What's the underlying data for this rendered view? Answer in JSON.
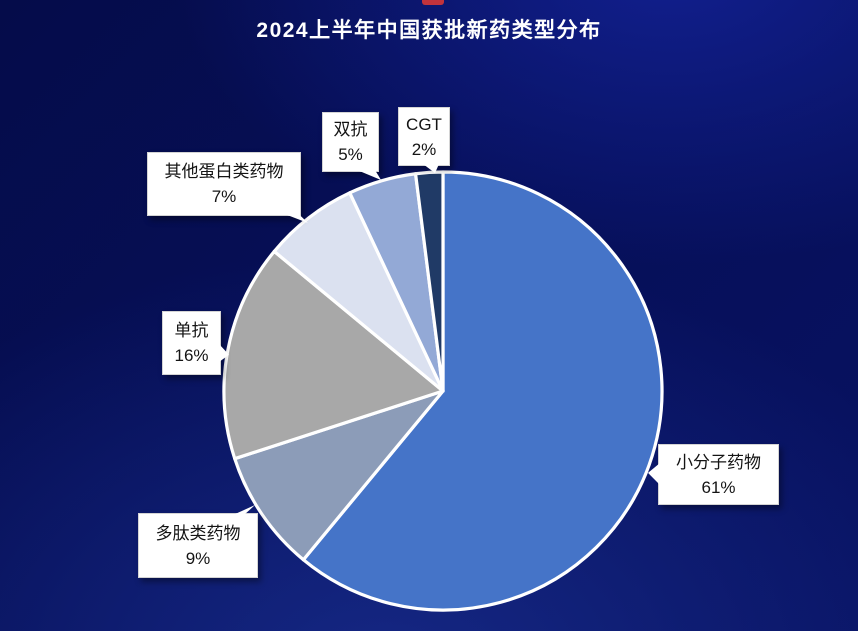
{
  "chart_data": {
    "type": "pie",
    "title": "2024上半年中国获批新药类型分布",
    "direction": "clockwise",
    "start_angle_deg": 0,
    "total_pct": 100,
    "legend": "none",
    "label_style": "white callout boxes with name and percent",
    "slices": [
      {
        "label": "小分子药物",
        "value_pct": 61,
        "pct_label": "61%",
        "color": "#4574C8"
      },
      {
        "label": "多肽类药物",
        "value_pct": 9,
        "pct_label": "9%",
        "color": "#8C9CB8"
      },
      {
        "label": "单抗",
        "value_pct": 16,
        "pct_label": "16%",
        "color": "#A8A8A8"
      },
      {
        "label": "其他蛋白类药物",
        "value_pct": 7,
        "pct_label": "7%",
        "color": "#DBE1F0"
      },
      {
        "label": "双抗",
        "value_pct": 5,
        "pct_label": "5%",
        "color": "#93A9D6"
      },
      {
        "label": "CGT",
        "value_pct": 2,
        "pct_label": "2%",
        "color": "#203A66"
      }
    ]
  },
  "decorations": {
    "top_red_dash_color": "#C2333C",
    "slice_border_color": "#FFFFFF",
    "background_base_color": "#060F58"
  }
}
